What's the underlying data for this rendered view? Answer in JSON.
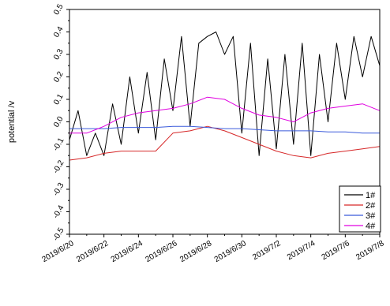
{
  "chart_data": {
    "type": "line",
    "xlabel": "",
    "ylabel": "potential /v",
    "ylim": [
      -0.5,
      0.5
    ],
    "yticks": [
      -0.5,
      -0.4,
      -0.3,
      -0.2,
      -0.1,
      0.0,
      0.1,
      0.2,
      0.3,
      0.4,
      0.5
    ],
    "ytick_labels": [
      "-0.5",
      "-0.4",
      "-0.3",
      "-0.2",
      "-0.1",
      "0.0",
      "0.1",
      "0.2",
      "0.3",
      "0.4",
      "0.5"
    ],
    "xlim": [
      "2019/6/20",
      "2019/7/8"
    ],
    "xtick_labels": [
      "2019/6/20",
      "2019/6/22",
      "2019/6/24",
      "2019/6/26",
      "2019/6/28",
      "2019/6/30",
      "2019/7/2",
      "2019/7/4",
      "2019/7/6",
      "2019/7/8"
    ],
    "legend_position": "bottom-right",
    "series": [
      {
        "name": "1#",
        "color": "#000000",
        "x": [
          "2019/6/20",
          "2019/6/20 12:00",
          "2019/6/21",
          "2019/6/21 12:00",
          "2019/6/22",
          "2019/6/22 12:00",
          "2019/6/23",
          "2019/6/23 12:00",
          "2019/6/24",
          "2019/6/24 12:00",
          "2019/6/25",
          "2019/6/25 12:00",
          "2019/6/26",
          "2019/6/26 12:00",
          "2019/6/27",
          "2019/6/27 12:00",
          "2019/6/28",
          "2019/6/28 12:00",
          "2019/6/29",
          "2019/6/29 12:00",
          "2019/6/30",
          "2019/6/30 12:00",
          "2019/7/1",
          "2019/7/1 12:00",
          "2019/7/2",
          "2019/7/2 12:00",
          "2019/7/3",
          "2019/7/3 12:00",
          "2019/7/4",
          "2019/7/4 12:00",
          "2019/7/5",
          "2019/7/5 12:00",
          "2019/7/6",
          "2019/7/6 12:00",
          "2019/7/7",
          "2019/7/7 12:00",
          "2019/7/8"
        ],
        "values": [
          -0.08,
          0.05,
          -0.15,
          -0.05,
          -0.15,
          0.08,
          -0.1,
          0.2,
          -0.05,
          0.22,
          -0.08,
          0.28,
          0.05,
          0.38,
          -0.02,
          0.35,
          0.38,
          0.4,
          0.3,
          0.38,
          -0.05,
          0.35,
          -0.15,
          0.28,
          -0.12,
          0.3,
          -0.1,
          0.35,
          -0.15,
          0.3,
          0.0,
          0.35,
          0.1,
          0.38,
          0.2,
          0.38,
          0.25
        ]
      },
      {
        "name": "2#",
        "color": "#d62728",
        "x": [
          "2019/6/20",
          "2019/6/21",
          "2019/6/22",
          "2019/6/23",
          "2019/6/24",
          "2019/6/25",
          "2019/6/26",
          "2019/6/27",
          "2019/6/28",
          "2019/6/29",
          "2019/6/30",
          "2019/7/1",
          "2019/7/2",
          "2019/7/3",
          "2019/7/4",
          "2019/7/5",
          "2019/7/6",
          "2019/7/7",
          "2019/7/8"
        ],
        "values": [
          -0.17,
          -0.16,
          -0.14,
          -0.13,
          -0.13,
          -0.13,
          -0.05,
          -0.04,
          -0.02,
          -0.04,
          -0.07,
          -0.1,
          -0.13,
          -0.15,
          -0.16,
          -0.14,
          -0.13,
          -0.12,
          -0.11
        ]
      },
      {
        "name": "3#",
        "color": "#3b5bdb",
        "x": [
          "2019/6/20",
          "2019/6/21",
          "2019/6/22",
          "2019/6/23",
          "2019/6/24",
          "2019/6/25",
          "2019/6/26",
          "2019/6/27",
          "2019/6/28",
          "2019/6/29",
          "2019/6/30",
          "2019/7/1",
          "2019/7/2",
          "2019/7/3",
          "2019/7/4",
          "2019/7/5",
          "2019/7/6",
          "2019/7/7",
          "2019/7/8"
        ],
        "values": [
          -0.03,
          -0.03,
          -0.03,
          -0.025,
          -0.025,
          -0.025,
          -0.02,
          -0.02,
          -0.025,
          -0.03,
          -0.03,
          -0.035,
          -0.04,
          -0.04,
          -0.04,
          -0.045,
          -0.045,
          -0.05,
          -0.05
        ]
      },
      {
        "name": "4#",
        "color": "#e000e0",
        "x": [
          "2019/6/20",
          "2019/6/21",
          "2019/6/22",
          "2019/6/23",
          "2019/6/24",
          "2019/6/25",
          "2019/6/26",
          "2019/6/27",
          "2019/6/28",
          "2019/6/29",
          "2019/6/30",
          "2019/7/1",
          "2019/7/2",
          "2019/7/3",
          "2019/7/4",
          "2019/7/5",
          "2019/7/6",
          "2019/7/7",
          "2019/7/8"
        ],
        "values": [
          -0.05,
          -0.05,
          -0.02,
          0.02,
          0.04,
          0.05,
          0.06,
          0.08,
          0.11,
          0.1,
          0.06,
          0.03,
          0.02,
          0.0,
          0.04,
          0.06,
          0.07,
          0.08,
          0.05
        ]
      }
    ]
  }
}
